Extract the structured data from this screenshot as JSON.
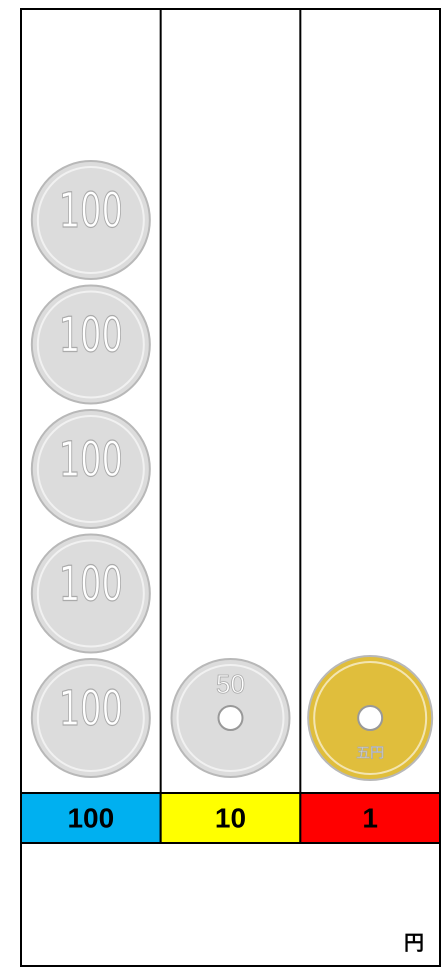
{
  "board": {
    "columns": [
      {
        "label": "100",
        "color": "#00b0f0",
        "coins": [
          {
            "face": "100",
            "metal": "#dcdcdc"
          },
          {
            "face": "100",
            "metal": "#dcdcdc"
          },
          {
            "face": "100",
            "metal": "#dcdcdc"
          },
          {
            "face": "100",
            "metal": "#dcdcdc"
          },
          {
            "face": "100",
            "metal": "#dcdcdc"
          }
        ]
      },
      {
        "label": "10",
        "color": "#ffff00",
        "coins": [
          {
            "face": "50",
            "metal": "#dcdcdc",
            "hole": true
          }
        ]
      },
      {
        "label": "1",
        "color": "#ff0000",
        "coins": [
          {
            "face": "五円",
            "metal": "#e0be3c",
            "hole": true
          }
        ]
      }
    ],
    "unit": "円"
  }
}
